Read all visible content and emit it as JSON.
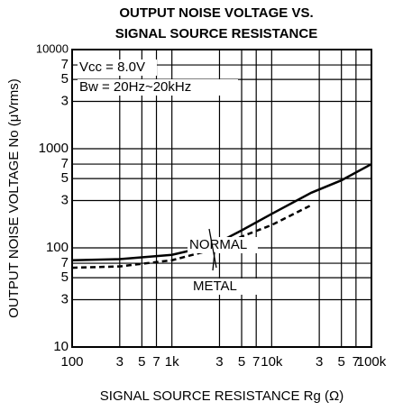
{
  "chart_data": {
    "type": "line",
    "title": "OUTPUT NOISE VOLTAGE VS.",
    "subtitle": "SIGNAL SOURCE RESISTANCE",
    "x_label": "SIGNAL SOURCE RESISTANCE Rg (Ω)",
    "y_label": "OUTPUT NOISE VOLTAGE No (μVrms)",
    "annotations": [
      "Vcc = 8.0V",
      "Bw = 20Hz~20kHz"
    ],
    "log_x": true,
    "log_y": true,
    "grid": true,
    "xlim": [
      100,
      100000
    ],
    "ylim": [
      10,
      10000
    ],
    "xticks": [
      100,
      {
        "value": 300,
        "label": "3"
      },
      {
        "value": 500,
        "label": "5"
      },
      {
        "value": 700,
        "label": "7"
      },
      {
        "value": 1000,
        "label": "1k"
      },
      {
        "value": 3000,
        "label": "3"
      },
      {
        "value": 5000,
        "label": "5"
      },
      {
        "value": 7000,
        "label": "7"
      },
      {
        "value": 10000,
        "label": "10k"
      },
      {
        "value": 30000,
        "label": "3"
      },
      {
        "value": 50000,
        "label": "5"
      },
      {
        "value": 70000,
        "label": "7"
      },
      {
        "value": 100000,
        "label": "100k"
      }
    ],
    "yticks": [
      10,
      {
        "value": 30,
        "label": "3"
      },
      {
        "value": 50,
        "label": "5"
      },
      {
        "value": 70,
        "label": "7"
      },
      100,
      {
        "value": 300,
        "label": "3"
      },
      {
        "value": 500,
        "label": "5"
      },
      {
        "value": 700,
        "label": "7"
      },
      1000,
      {
        "value": 3000,
        "label": "3"
      },
      {
        "value": 5000,
        "label": "5"
      },
      {
        "value": 7000,
        "label": "7"
      },
      10000
    ],
    "x": [
      100,
      300,
      1000,
      2000,
      3000,
      5000,
      10000,
      25000,
      50000,
      100000
    ],
    "series": [
      {
        "name": "NORMAL",
        "color": "#000000",
        "style": "solid",
        "values": [
          75,
          77,
          85,
          100,
          115,
          150,
          220,
          360,
          480,
          700
        ]
      },
      {
        "name": "METAL",
        "color": "#000000",
        "style": "dashed",
        "values": [
          63,
          65,
          75,
          90,
          103,
          130,
          170,
          270,
          null,
          null
        ]
      }
    ]
  }
}
